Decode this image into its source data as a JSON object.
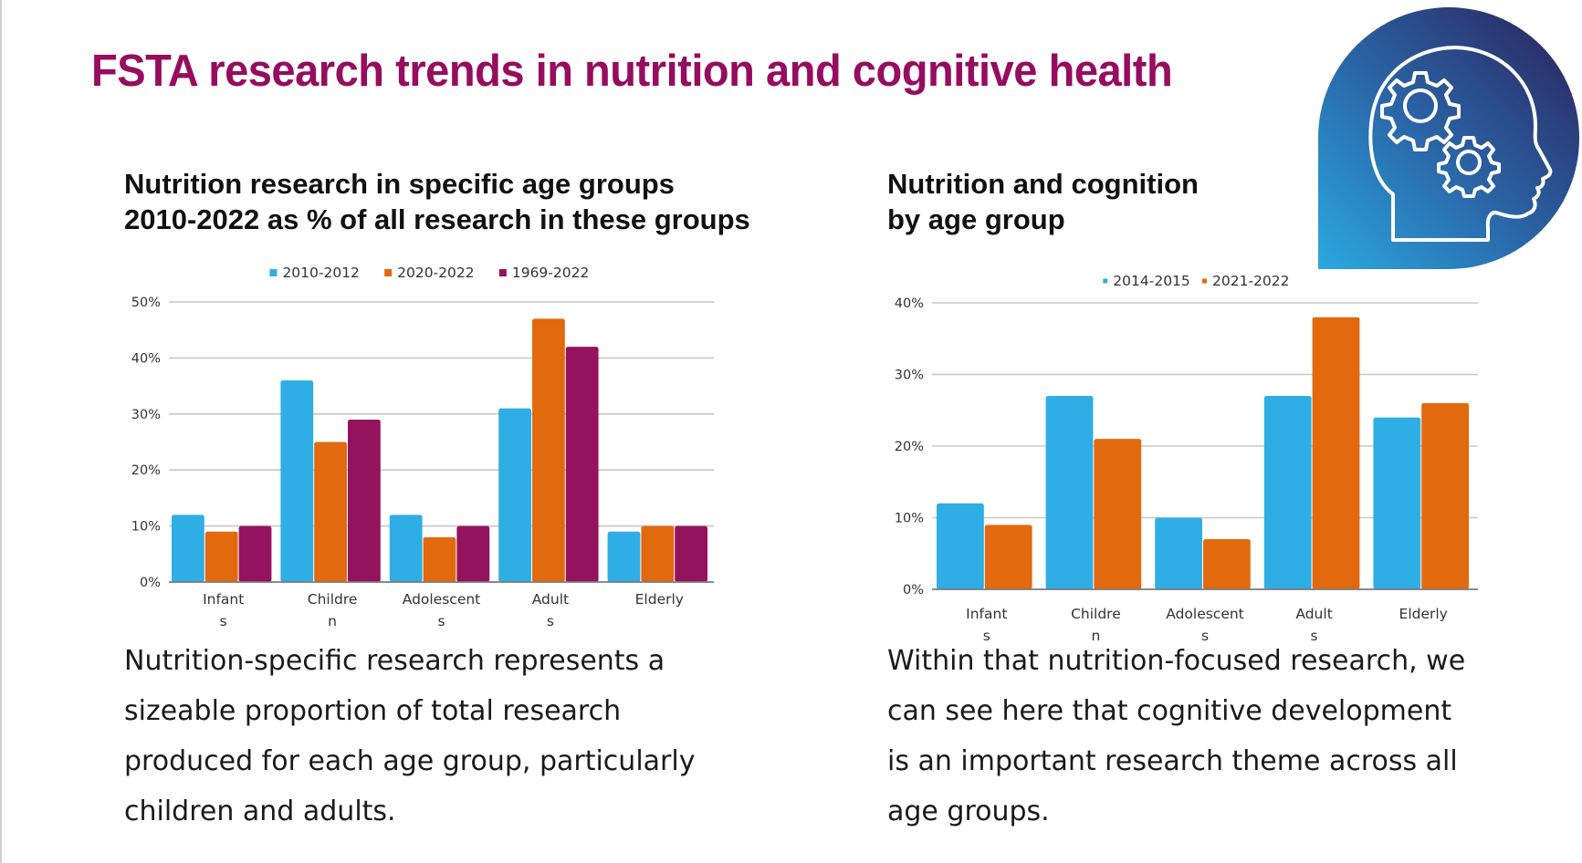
{
  "page": {
    "title": "FSTA research trends in nutrition and cognitive health",
    "title_color": "#960c5f",
    "icon": "head-with-gears-icon"
  },
  "left_panel": {
    "subtitle_lines": [
      "Nutrition research in specific age groups",
      "2010-2022 as % of all research in these groups"
    ],
    "body_lines": [
      "Nutrition-specific research represents a",
      "sizeable proportion of total research",
      "produced for each age group, particularly",
      "children and adults."
    ]
  },
  "right_panel": {
    "subtitle_lines": [
      "Nutrition and cognition",
      "by age group"
    ],
    "body_lines": [
      "Within that nutrition-focused research, we",
      "can see here that cognitive development",
      "is an important research theme across all",
      "age groups."
    ]
  },
  "chart_data": [
    {
      "type": "bar",
      "title": "Nutrition research in specific age groups 2010-2022 as % of all research in these groups",
      "xlabel": "",
      "ylabel": "",
      "categories": [
        "Infants",
        "Children",
        "Adolescents",
        "Adults",
        "Elderly"
      ],
      "category_label_lines": [
        [
          "Infant",
          "s"
        ],
        [
          "Childre",
          "n"
        ],
        [
          "Adolescent",
          "s"
        ],
        [
          "Adult",
          "s"
        ],
        [
          "Elderly",
          ""
        ]
      ],
      "series": [
        {
          "name": "2010-2012",
          "color": "#2eaee4",
          "values": [
            12,
            36,
            12,
            31,
            9
          ]
        },
        {
          "name": "2020-2022",
          "color": "#e2690e",
          "values": [
            9,
            25,
            8,
            47,
            10
          ]
        },
        {
          "name": "1969-2022",
          "color": "#95125f",
          "values": [
            10,
            29,
            10,
            42,
            10
          ]
        }
      ],
      "ylim": [
        0,
        50
      ],
      "yticks": [
        0,
        10,
        20,
        30,
        40,
        50
      ],
      "ytick_labels": [
        "0%",
        "10%",
        "20%",
        "30%",
        "40%",
        "50%"
      ],
      "grid": true,
      "legend": "top-center",
      "unit": "%"
    },
    {
      "type": "bar",
      "title": "Nutrition and cognition by age group",
      "xlabel": "",
      "ylabel": "",
      "categories": [
        "Infants",
        "Children",
        "Adolescents",
        "Adults",
        "Elderly"
      ],
      "category_label_lines": [
        [
          "Infant",
          "s"
        ],
        [
          "Childre",
          "n"
        ],
        [
          "Adolescent",
          "s"
        ],
        [
          "Adult",
          "s"
        ],
        [
          "Elderly",
          ""
        ]
      ],
      "series": [
        {
          "name": "2014-2015",
          "color": "#2eaee4",
          "values": [
            12,
            27,
            10,
            27,
            24
          ]
        },
        {
          "name": "2021-2022",
          "color": "#e2690e",
          "values": [
            9,
            21,
            7,
            38,
            26
          ]
        }
      ],
      "ylim": [
        0,
        40
      ],
      "yticks": [
        0,
        10,
        20,
        30,
        40
      ],
      "ytick_labels": [
        "0%",
        "10%",
        "20%",
        "30%",
        "40%"
      ],
      "grid": true,
      "legend": "top-center",
      "unit": "%"
    }
  ]
}
